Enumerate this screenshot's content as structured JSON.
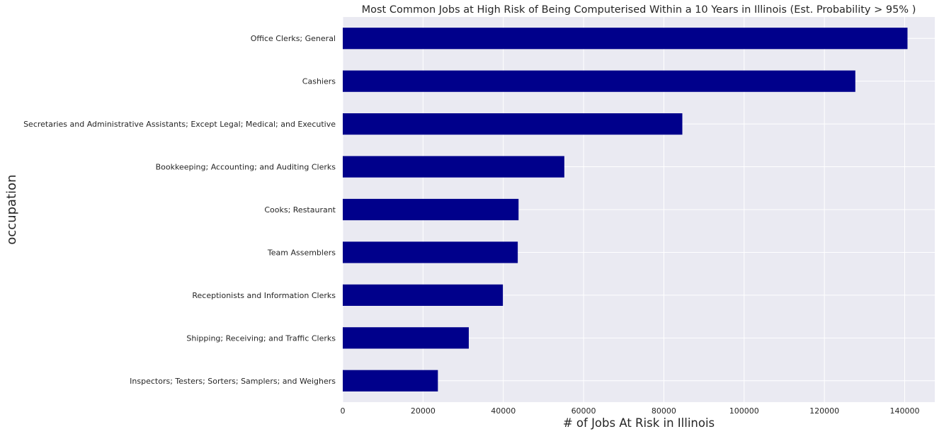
{
  "chart_data": {
    "type": "bar",
    "orientation": "horizontal",
    "title": "Most Common Jobs at High Risk of Being Computerised Within a 10 Years in Illinois (Est. Probability > 95% )",
    "xlabel": "# of Jobs At Risk in Illinois",
    "ylabel": "occupation",
    "categories": [
      "Office Clerks; General",
      "Cashiers",
      "Secretaries and Administrative Assistants; Except Legal; Medical; and Executive",
      "Bookkeeping; Accounting; and Auditing Clerks",
      "Cooks; Restaurant",
      "Team Assemblers",
      "Receptionists and Information Clerks",
      "Shipping; Receiving; and Traffic Clerks",
      "Inspectors; Testers; Sorters; Samplers; and Weighers"
    ],
    "values": [
      140700,
      127700,
      84600,
      55200,
      43800,
      43600,
      39900,
      31400,
      23700
    ],
    "xlim": [
      0,
      147500
    ],
    "xticks": [
      0,
      20000,
      40000,
      60000,
      80000,
      100000,
      120000,
      140000
    ],
    "xtick_labels": [
      "0",
      "20000",
      "40000",
      "60000",
      "80000",
      "100000",
      "120000",
      "140000"
    ],
    "grid": true,
    "bar_color": "#00008b",
    "background_color": "#eaeaf2",
    "grid_color": "#ffffff"
  }
}
